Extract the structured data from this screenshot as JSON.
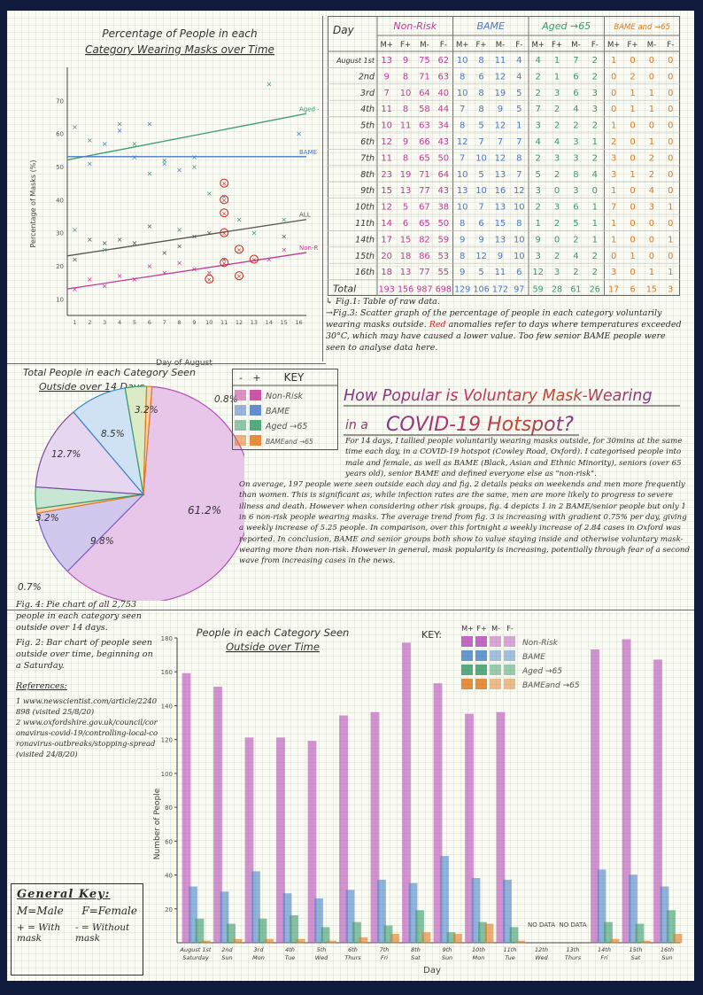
{
  "scatter": {
    "title_line1": "Percentage of People in each",
    "title_line2": "Category Wearing Masks over Time",
    "ylabel": "Percentage of Masks (%)",
    "xlabel": "Day of August",
    "y_ticks": [
      "10",
      "20",
      "30",
      "40",
      "50",
      "60",
      "70"
    ],
    "x_ticks": [
      "1",
      "2",
      "3",
      "4",
      "5",
      "6",
      "7",
      "8",
      "9",
      "10",
      "11",
      "12",
      "13",
      "14",
      "15",
      "16"
    ],
    "line_labels": [
      "Aged →65",
      "BAME",
      "ALL",
      "Non-Risk"
    ],
    "trend_lines": [
      {
        "name": "Aged →65",
        "color": "#3a9a6a",
        "y_start": 52,
        "y_end": 66
      },
      {
        "name": "BAME",
        "color": "#4a7ac8",
        "y_start": 53,
        "y_end": 53
      },
      {
        "name": "ALL",
        "color": "#555555",
        "y_start": 23,
        "y_end": 34
      },
      {
        "name": "Non-Risk",
        "color": "#c23a9a",
        "y_start": 13,
        "y_end": 24
      }
    ],
    "points": [
      {
        "x": 1,
        "y": 31,
        "c": "#3a9a6a"
      },
      {
        "x": 2,
        "y": 58,
        "c": "#3a9a6a"
      },
      {
        "x": 3,
        "y": 25,
        "c": "#3a9a6a"
      },
      {
        "x": 4,
        "y": 63,
        "c": "#3a9a6a"
      },
      {
        "x": 5,
        "y": 57,
        "c": "#3a9a6a"
      },
      {
        "x": 6,
        "y": 48,
        "c": "#3a9a6a"
      },
      {
        "x": 7,
        "y": 52,
        "c": "#3a9a6a"
      },
      {
        "x": 8,
        "y": 31,
        "c": "#3a9a6a"
      },
      {
        "x": 9,
        "y": 50,
        "c": "#3a9a6a"
      },
      {
        "x": 10,
        "y": 42,
        "c": "#3a9a6a"
      },
      {
        "x": 12,
        "y": 34,
        "c": "#3a9a6a"
      },
      {
        "x": 13,
        "y": 30,
        "c": "#3a9a6a"
      },
      {
        "x": 14,
        "y": 75,
        "c": "#3a9a6a"
      },
      {
        "x": 15,
        "y": 34,
        "c": "#3a9a6a"
      },
      {
        "x": 1,
        "y": 62,
        "c": "#4a7ac8"
      },
      {
        "x": 2,
        "y": 51,
        "c": "#4a7ac8"
      },
      {
        "x": 3,
        "y": 57,
        "c": "#4a7ac8"
      },
      {
        "x": 4,
        "y": 61,
        "c": "#4a7ac8"
      },
      {
        "x": 5,
        "y": 53,
        "c": "#4a7ac8"
      },
      {
        "x": 6,
        "y": 63,
        "c": "#4a7ac8"
      },
      {
        "x": 7,
        "y": 51,
        "c": "#4a7ac8"
      },
      {
        "x": 8,
        "y": 49,
        "c": "#4a7ac8"
      },
      {
        "x": 9,
        "y": 53,
        "c": "#4a7ac8"
      },
      {
        "x": 11,
        "y": 41,
        "c": "#4a7ac8"
      },
      {
        "x": 16,
        "y": 60,
        "c": "#4a7ac8"
      },
      {
        "x": 1,
        "y": 22,
        "c": "#555555"
      },
      {
        "x": 2,
        "y": 28,
        "c": "#555555"
      },
      {
        "x": 3,
        "y": 27,
        "c": "#555555"
      },
      {
        "x": 4,
        "y": 28,
        "c": "#555555"
      },
      {
        "x": 5,
        "y": 27,
        "c": "#555555"
      },
      {
        "x": 6,
        "y": 32,
        "c": "#555555"
      },
      {
        "x": 7,
        "y": 24,
        "c": "#555555"
      },
      {
        "x": 8,
        "y": 26,
        "c": "#555555"
      },
      {
        "x": 9,
        "y": 29,
        "c": "#555555"
      },
      {
        "x": 10,
        "y": 30,
        "c": "#555555"
      },
      {
        "x": 11,
        "y": 22,
        "c": "#555555"
      },
      {
        "x": 15,
        "y": 29,
        "c": "#555555"
      },
      {
        "x": 1,
        "y": 13,
        "c": "#c23a9a"
      },
      {
        "x": 2,
        "y": 16,
        "c": "#c23a9a"
      },
      {
        "x": 3,
        "y": 14,
        "c": "#c23a9a"
      },
      {
        "x": 4,
        "y": 17,
        "c": "#c23a9a"
      },
      {
        "x": 5,
        "y": 16,
        "c": "#c23a9a"
      },
      {
        "x": 6,
        "y": 20,
        "c": "#c23a9a"
      },
      {
        "x": 7,
        "y": 18,
        "c": "#c23a9a"
      },
      {
        "x": 8,
        "y": 21,
        "c": "#c23a9a"
      },
      {
        "x": 9,
        "y": 19,
        "c": "#c23a9a"
      },
      {
        "x": 10,
        "y": 18,
        "c": "#c23a9a"
      },
      {
        "x": 14,
        "y": 22,
        "c": "#c23a9a"
      },
      {
        "x": 15,
        "y": 25,
        "c": "#c23a9a"
      }
    ],
    "anomalies": [
      {
        "x": 11,
        "y": 45
      },
      {
        "x": 11,
        "y": 40
      },
      {
        "x": 11,
        "y": 36
      },
      {
        "x": 11,
        "y": 30
      },
      {
        "x": 11,
        "y": 21
      },
      {
        "x": 12,
        "y": 17
      },
      {
        "x": 12,
        "y": 25
      },
      {
        "x": 13,
        "y": 22
      },
      {
        "x": 10,
        "y": 16
      }
    ]
  },
  "raw_table": {
    "corner": "Day",
    "groups": [
      {
        "name": "Non-Risk",
        "color": "#c23a9a"
      },
      {
        "name": "BAME",
        "color": "#4a7ac8"
      },
      {
        "name": "Aged →65",
        "color": "#3a9a6a"
      },
      {
        "name": "BAME and →65",
        "color": "#e07a20"
      }
    ],
    "subheaders": [
      "M+",
      "F+",
      "M-",
      "F-"
    ],
    "days": [
      "August 1st",
      "2nd",
      "3rd",
      "4th",
      "5th",
      "6th",
      "7th",
      "8th",
      "9th",
      "10th",
      "11th",
      "14th",
      "15th",
      "16th"
    ],
    "rows": [
      [
        13,
        9,
        75,
        62,
        10,
        8,
        11,
        4,
        4,
        1,
        7,
        2,
        1,
        0,
        0,
        0
      ],
      [
        9,
        8,
        71,
        63,
        8,
        6,
        12,
        4,
        2,
        1,
        6,
        2,
        0,
        2,
        0,
        0
      ],
      [
        7,
        10,
        64,
        40,
        10,
        8,
        19,
        5,
        2,
        3,
        6,
        3,
        0,
        1,
        1,
        0
      ],
      [
        11,
        8,
        58,
        44,
        7,
        8,
        9,
        5,
        7,
        2,
        4,
        3,
        0,
        1,
        1,
        0
      ],
      [
        10,
        11,
        63,
        34,
        8,
        5,
        12,
        1,
        3,
        2,
        2,
        2,
        1,
        0,
        0,
        0
      ],
      [
        12,
        9,
        66,
        43,
        12,
        7,
        7,
        7,
        4,
        4,
        3,
        1,
        2,
        0,
        1,
        0
      ],
      [
        11,
        8,
        65,
        50,
        7,
        10,
        12,
        8,
        2,
        3,
        3,
        2,
        3,
        0,
        2,
        0
      ],
      [
        23,
        19,
        71,
        64,
        10,
        5,
        13,
        7,
        5,
        2,
        8,
        4,
        3,
        1,
        2,
        0
      ],
      [
        15,
        13,
        77,
        43,
        13,
        10,
        16,
        12,
        3,
        0,
        3,
        0,
        1,
        0,
        4,
        0
      ],
      [
        12,
        5,
        67,
        38,
        10,
        7,
        13,
        10,
        2,
        3,
        6,
        1,
        7,
        0,
        3,
        1
      ],
      [
        14,
        6,
        65,
        50,
        8,
        6,
        15,
        8,
        1,
        2,
        5,
        1,
        1,
        0,
        0,
        0
      ],
      [
        17,
        15,
        82,
        59,
        9,
        9,
        13,
        10,
        9,
        0,
        2,
        1,
        1,
        0,
        0,
        1
      ],
      [
        20,
        18,
        86,
        53,
        8,
        12,
        9,
        10,
        3,
        2,
        4,
        2,
        0,
        1,
        0,
        0
      ],
      [
        18,
        13,
        77,
        55,
        9,
        5,
        11,
        6,
        12,
        3,
        2,
        2,
        3,
        0,
        1,
        1
      ]
    ],
    "total_label": "Total",
    "totals": [
      193,
      156,
      987,
      698,
      129,
      106,
      172,
      97,
      59,
      28,
      61,
      26,
      17,
      6,
      15,
      3
    ]
  },
  "captions": {
    "fig1": "↳ Fig.1: Table of raw data.",
    "fig3_a": "→Fig.3: Scatter graph of the percentage of people in each category voluntarily wearing masks outside. ",
    "fig3_red": "Red",
    "fig3_b": " anomalies refer to days where temperatures exceeded 30°C, which may have caused a lower value. Too few senior BAME people were seen to analyse data here."
  },
  "pie": {
    "title_line1": "Total People in each Category Seen",
    "title_line2": "Outside over 14 Days",
    "slices": [
      {
        "label": "61.2%",
        "value": 61.2,
        "color": "#b64fb8",
        "fill": "#e7c6ea"
      },
      {
        "label": "9.8%",
        "value": 9.8,
        "color": "#7a62c2",
        "fill": "#d2c8ee"
      },
      {
        "label": "0.7%",
        "value": 0.7,
        "color": "#e07a20",
        "fill": "#f6d3b0"
      },
      {
        "label": "3.2%",
        "value": 3.2,
        "color": "#3a9a6a",
        "fill": "#c7e7d4"
      },
      {
        "label": "12.7%",
        "value": 12.7,
        "color": "#7a4a9a",
        "fill": "#e6d6ef"
      },
      {
        "label": "8.5%",
        "value": 8.5,
        "color": "#3a86c8",
        "fill": "#cfe2f4"
      },
      {
        "label": "3.2%",
        "value": 3.2,
        "color": "#3a9a6a",
        "fill": "#dcebc6"
      },
      {
        "label": "0.8%",
        "value": 0.8,
        "color": "#e07a20",
        "fill": "#f6d3b0"
      }
    ]
  },
  "key": {
    "headers": [
      "-",
      "+",
      "KEY"
    ],
    "items": [
      {
        "label": "Non-Risk",
        "color": "#c23a9a"
      },
      {
        "label": "BAME",
        "color": "#4a7ac8"
      },
      {
        "label": "Aged →65",
        "color": "#3a9a6a"
      },
      {
        "label": "BAMEand →65",
        "color": "#e07a20"
      }
    ]
  },
  "title": {
    "line1": "How Popular is Voluntary Mask-Wearing",
    "line2a": "in a",
    "line2b": "COVID-19 Hotspot?"
  },
  "body": {
    "p1": "For 14 days, I tallied people voluntarily wearing masks outside, for 30mins at the same time each day, in a COVID-19 hotspot (Cowley Road, Oxford). I categorised people into male and female, as well as BAME (Black, Asian and Ethnic Minority), seniors (over 65 years old), senior BAME and defined everyone else as \"non-risk\".",
    "p2": "On average, 197 people were seen outside each day and fig. 2 details peaks on weekends and men more frequently than women. This is significant as, while infection rates are the same, men are more likely to progress to severe illness and death. However when considering other risk groups, fig. 4 depicts 1 in 2 BAME/senior people but only 1 in 6 non-risk people wearing masks. The average trend from fig. 3 is increasing with gradient 0.75% per day, giving a weekly increase of 5.25 people. In comparison, over this fortnight a weekly increase of 2.84 cases in Oxford was reported. In conclusion, BAME and senior groups both show to value staying inside and otherwise voluntary mask-wearing more than non-risk. However in general, mask popularity is increasing, potentially through fear of a second wave from increasing cases in the news."
  },
  "notes": {
    "fig4": "Fig. 4: Pie chart of all 2,753 people in each category seen outside over 14 days.",
    "fig2": "Fig. 2: Bar chart of people seen outside over time, beginning on a Saturday.",
    "refs_title": "References:",
    "ref1": "1 www.newscientist.com/article/2240898 (visited 25/8/20)",
    "ref2": "2 www.oxfordshire.gov.uk/council/coronavirus-covid-19/controlling-local-coronavirus-outbreaks/stopping-spread (visited 24/8/20)"
  },
  "general_key": {
    "title": "General Key:",
    "male": "M=Male",
    "female": "F=Female",
    "with_mask": "+ = With mask",
    "without_mask": "- = Without mask"
  },
  "chart_data": {
    "type": "bar",
    "title": "People in each Category Seen Outside over Time",
    "xlabel": "Day",
    "ylabel": "Number of People",
    "ylim": [
      0,
      180
    ],
    "y_ticks": [
      20,
      40,
      60,
      80,
      100,
      120,
      140,
      160,
      180
    ],
    "legend_title": "KEY:",
    "legend_cols": [
      "M+",
      "F+",
      "M-",
      "F-"
    ],
    "categories": [
      "August 1st Saturday",
      "2nd Sun",
      "3rd Mon",
      "4th Tue",
      "5th Wed",
      "6th Thurs",
      "7th Fri",
      "8th Sat",
      "9th Sun",
      "10th Mon",
      "11th Tue",
      "12th Wed",
      "13th Thurs",
      "14th Fri",
      "15th Sat",
      "16th Sun"
    ],
    "no_data_label": "NO DATA",
    "no_data_days": [
      11,
      12
    ],
    "series": [
      {
        "name": "Non-Risk",
        "color": "#b64fb8",
        "values": [
          159,
          151,
          121,
          121,
          119,
          134,
          136,
          177,
          153,
          135,
          136,
          0,
          0,
          173,
          179,
          167
        ]
      },
      {
        "name": "BAME",
        "color": "#4a86c8",
        "values": [
          33,
          30,
          42,
          29,
          26,
          31,
          37,
          35,
          51,
          38,
          37,
          0,
          0,
          43,
          40,
          33
        ]
      },
      {
        "name": "Aged →65",
        "color": "#3a9a6a",
        "values": [
          14,
          11,
          14,
          16,
          9,
          12,
          10,
          19,
          6,
          12,
          9,
          0,
          0,
          12,
          11,
          19
        ]
      },
      {
        "name": "BAMEand →65",
        "color": "#e07a20",
        "values": [
          1,
          2,
          2,
          2,
          1,
          3,
          5,
          6,
          5,
          11,
          1,
          0,
          0,
          2,
          1,
          5
        ]
      }
    ]
  }
}
